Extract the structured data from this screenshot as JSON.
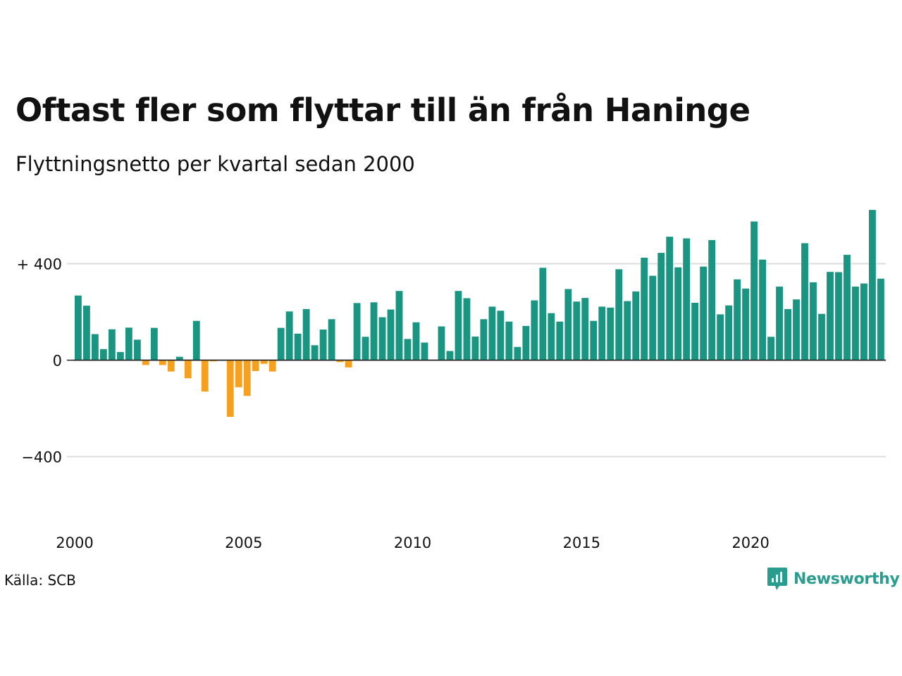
{
  "title": "Oftast fler som flyttar till än från Haninge",
  "subtitle": "Flyttningsnetto per kvartal sedan 2000",
  "source": "Källa: SCB",
  "brand": {
    "name": "Newsworthy",
    "icon": "newsworthy-logo-icon",
    "color": "#2a9d8f"
  },
  "colors": {
    "positive": "#1a9582",
    "negative": "#f5a01f",
    "grid": "#dddddd",
    "zero": "#222222"
  },
  "chart_data": {
    "type": "bar",
    "x_start": 2000,
    "periods_per_year": 4,
    "xticks": [
      "2000",
      "2005",
      "2010",
      "2015",
      "2020"
    ],
    "yticks": [
      {
        "value": 400,
        "label": "+ 400"
      },
      {
        "value": 0,
        "label": "0"
      },
      {
        "value": -400,
        "label": "−400"
      }
    ],
    "ylim": [
      -600,
      620
    ],
    "grid": true,
    "values": [
      268,
      226,
      108,
      46,
      128,
      34,
      135,
      85,
      -20,
      134,
      -20,
      -47,
      14,
      -75,
      163,
      -130,
      -5,
      0,
      -235,
      -112,
      -148,
      -45,
      -15,
      -47,
      134,
      202,
      110,
      212,
      62,
      127,
      170,
      -8,
      -30,
      237,
      97,
      240,
      178,
      210,
      287,
      88,
      157,
      73,
      0,
      140,
      38,
      287,
      257,
      98,
      170,
      222,
      205,
      160,
      55,
      142,
      248,
      383,
      195,
      160,
      295,
      243,
      258,
      163,
      222,
      218,
      377,
      245,
      285,
      425,
      350,
      445,
      512,
      385,
      505,
      238,
      388,
      498,
      190,
      227,
      335,
      297,
      575,
      417,
      97,
      305,
      212,
      252,
      485,
      323,
      192,
      366,
      365,
      437,
      305,
      318,
      623,
      338
    ]
  }
}
